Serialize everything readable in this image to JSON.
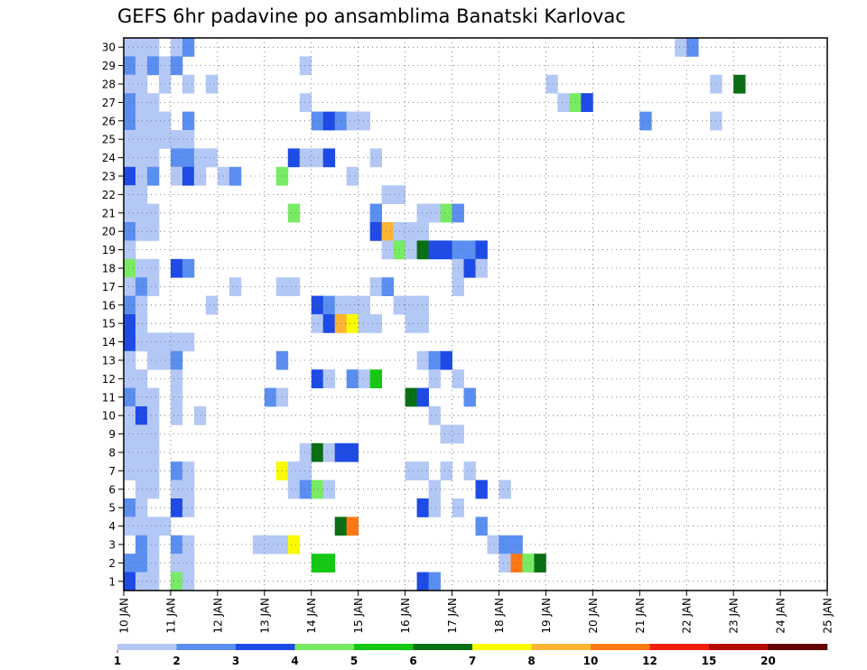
{
  "chart_data": {
    "type": "heatmap",
    "title": "GEFS 6hr padavine po ansamblima Banatski Karlovac",
    "x_start": "10 JAN",
    "x_end": "25 JAN",
    "x_tick_labels": [
      "10 JAN",
      "11 JAN",
      "12 JAN",
      "13 JAN",
      "14 JAN",
      "15 JAN",
      "16 JAN",
      "17 JAN",
      "18 JAN",
      "19 JAN",
      "20 JAN",
      "21 JAN",
      "22 JAN",
      "23 JAN",
      "24 JAN",
      "25 JAN"
    ],
    "y_tick_labels": [
      "1",
      "2",
      "3",
      "4",
      "5",
      "6",
      "7",
      "8",
      "9",
      "10",
      "11",
      "12",
      "13",
      "14",
      "15",
      "16",
      "17",
      "18",
      "19",
      "20",
      "21",
      "22",
      "23",
      "24",
      "25",
      "26",
      "27",
      "28",
      "29",
      "30"
    ],
    "ylim": [
      0.5,
      30.5
    ],
    "grid": true,
    "legend": {
      "placement": "bottom",
      "labels": [
        "1",
        "2",
        "3",
        "4",
        "5",
        "6",
        "7",
        "8",
        "10",
        "12",
        "15",
        "20"
      ],
      "colors": [
        "#b4c8f5",
        "#5a8ef0",
        "#1e4be6",
        "#78eb64",
        "#14c814",
        "#0a6e14",
        "#fafa00",
        "#ffb432",
        "#ff7814",
        "#f01e0a",
        "#b40a00",
        "#640000"
      ]
    },
    "cells": [
      [
        1,
        30,
        1
      ],
      [
        2,
        30,
        1
      ],
      [
        3,
        30,
        1
      ],
      [
        5,
        30,
        1
      ],
      [
        6,
        30,
        2
      ],
      [
        48,
        30,
        1
      ],
      [
        49,
        30,
        2
      ],
      [
        1,
        29,
        2
      ],
      [
        2,
        29,
        1
      ],
      [
        3,
        29,
        2
      ],
      [
        4,
        29,
        1
      ],
      [
        5,
        29,
        2
      ],
      [
        16,
        29,
        1
      ],
      [
        1,
        28,
        1
      ],
      [
        2,
        28,
        1
      ],
      [
        4,
        28,
        1
      ],
      [
        6,
        28,
        1
      ],
      [
        8,
        28,
        1
      ],
      [
        37,
        28,
        1
      ],
      [
        51,
        28,
        1
      ],
      [
        53,
        28,
        6
      ],
      [
        1,
        27,
        2
      ],
      [
        2,
        27,
        1
      ],
      [
        3,
        27,
        1
      ],
      [
        16,
        27,
        1
      ],
      [
        38,
        27,
        1
      ],
      [
        39,
        27,
        4
      ],
      [
        40,
        27,
        3
      ],
      [
        1,
        26,
        2
      ],
      [
        2,
        26,
        1
      ],
      [
        3,
        26,
        1
      ],
      [
        4,
        26,
        1
      ],
      [
        6,
        26,
        2
      ],
      [
        17,
        26,
        2
      ],
      [
        18,
        26,
        3
      ],
      [
        19,
        26,
        2
      ],
      [
        20,
        26,
        1
      ],
      [
        21,
        26,
        1
      ],
      [
        45,
        26,
        2
      ],
      [
        51,
        26,
        1
      ],
      [
        1,
        25,
        1
      ],
      [
        2,
        25,
        1
      ],
      [
        3,
        25,
        1
      ],
      [
        4,
        25,
        1
      ],
      [
        5,
        25,
        1
      ],
      [
        6,
        25,
        1
      ],
      [
        1,
        24,
        1
      ],
      [
        2,
        24,
        1
      ],
      [
        3,
        24,
        1
      ],
      [
        5,
        24,
        2
      ],
      [
        6,
        24,
        2
      ],
      [
        7,
        24,
        1
      ],
      [
        8,
        24,
        1
      ],
      [
        15,
        24,
        3
      ],
      [
        16,
        24,
        1
      ],
      [
        17,
        24,
        1
      ],
      [
        18,
        24,
        3
      ],
      [
        22,
        24,
        1
      ],
      [
        1,
        23,
        3
      ],
      [
        2,
        23,
        1
      ],
      [
        3,
        23,
        2
      ],
      [
        5,
        23,
        1
      ],
      [
        6,
        23,
        3
      ],
      [
        7,
        23,
        1
      ],
      [
        9,
        23,
        1
      ],
      [
        10,
        23,
        2
      ],
      [
        14,
        23,
        4
      ],
      [
        20,
        23,
        1
      ],
      [
        1,
        22,
        1
      ],
      [
        2,
        22,
        1
      ],
      [
        23,
        22,
        1
      ],
      [
        24,
        22,
        1
      ],
      [
        1,
        21,
        1
      ],
      [
        2,
        21,
        1
      ],
      [
        3,
        21,
        1
      ],
      [
        15,
        21,
        4
      ],
      [
        22,
        21,
        2
      ],
      [
        26,
        21,
        1
      ],
      [
        27,
        21,
        1
      ],
      [
        28,
        21,
        4
      ],
      [
        29,
        21,
        2
      ],
      [
        1,
        20,
        2
      ],
      [
        2,
        20,
        1
      ],
      [
        3,
        20,
        1
      ],
      [
        22,
        20,
        3
      ],
      [
        23,
        20,
        8
      ],
      [
        24,
        20,
        1
      ],
      [
        25,
        20,
        1
      ],
      [
        26,
        20,
        1
      ],
      [
        1,
        19,
        1
      ],
      [
        23,
        19,
        1
      ],
      [
        24,
        19,
        4
      ],
      [
        25,
        19,
        1
      ],
      [
        26,
        19,
        6
      ],
      [
        27,
        19,
        3
      ],
      [
        28,
        19,
        3
      ],
      [
        29,
        19,
        2
      ],
      [
        30,
        19,
        2
      ],
      [
        31,
        19,
        3
      ],
      [
        1,
        18,
        4
      ],
      [
        2,
        18,
        1
      ],
      [
        3,
        18,
        1
      ],
      [
        5,
        18,
        3
      ],
      [
        6,
        18,
        2
      ],
      [
        29,
        18,
        1
      ],
      [
        30,
        18,
        3
      ],
      [
        31,
        18,
        1
      ],
      [
        1,
        17,
        1
      ],
      [
        2,
        17,
        2
      ],
      [
        3,
        17,
        1
      ],
      [
        10,
        17,
        1
      ],
      [
        14,
        17,
        1
      ],
      [
        15,
        17,
        1
      ],
      [
        22,
        17,
        1
      ],
      [
        23,
        17,
        2
      ],
      [
        29,
        17,
        1
      ],
      [
        1,
        16,
        2
      ],
      [
        2,
        16,
        1
      ],
      [
        8,
        16,
        1
      ],
      [
        17,
        16,
        3
      ],
      [
        18,
        16,
        2
      ],
      [
        19,
        16,
        1
      ],
      [
        20,
        16,
        1
      ],
      [
        21,
        16,
        1
      ],
      [
        24,
        16,
        1
      ],
      [
        25,
        16,
        1
      ],
      [
        26,
        16,
        1
      ],
      [
        1,
        15,
        3
      ],
      [
        2,
        15,
        1
      ],
      [
        17,
        15,
        1
      ],
      [
        18,
        15,
        3
      ],
      [
        19,
        15,
        8
      ],
      [
        20,
        15,
        7
      ],
      [
        21,
        15,
        1
      ],
      [
        22,
        15,
        1
      ],
      [
        25,
        15,
        1
      ],
      [
        26,
        15,
        1
      ],
      [
        1,
        14,
        3
      ],
      [
        2,
        14,
        1
      ],
      [
        3,
        14,
        1
      ],
      [
        4,
        14,
        1
      ],
      [
        5,
        14,
        1
      ],
      [
        6,
        14,
        1
      ],
      [
        1,
        13,
        1
      ],
      [
        3,
        13,
        1
      ],
      [
        4,
        13,
        1
      ],
      [
        5,
        13,
        2
      ],
      [
        14,
        13,
        2
      ],
      [
        26,
        13,
        1
      ],
      [
        27,
        13,
        2
      ],
      [
        28,
        13,
        3
      ],
      [
        1,
        12,
        1
      ],
      [
        2,
        12,
        1
      ],
      [
        5,
        12,
        1
      ],
      [
        17,
        12,
        3
      ],
      [
        18,
        12,
        1
      ],
      [
        20,
        12,
        2
      ],
      [
        21,
        12,
        1
      ],
      [
        22,
        12,
        5
      ],
      [
        27,
        12,
        1
      ],
      [
        29,
        12,
        1
      ],
      [
        1,
        11,
        2
      ],
      [
        2,
        11,
        1
      ],
      [
        3,
        11,
        1
      ],
      [
        5,
        11,
        1
      ],
      [
        13,
        11,
        2
      ],
      [
        14,
        11,
        1
      ],
      [
        25,
        11,
        6
      ],
      [
        26,
        11,
        3
      ],
      [
        30,
        11,
        2
      ],
      [
        1,
        10,
        1
      ],
      [
        2,
        10,
        3
      ],
      [
        3,
        10,
        1
      ],
      [
        5,
        10,
        1
      ],
      [
        7,
        10,
        1
      ],
      [
        27,
        10,
        1
      ],
      [
        1,
        9,
        1
      ],
      [
        2,
        9,
        1
      ],
      [
        3,
        9,
        1
      ],
      [
        28,
        9,
        1
      ],
      [
        29,
        9,
        1
      ],
      [
        1,
        8,
        1
      ],
      [
        2,
        8,
        1
      ],
      [
        3,
        8,
        1
      ],
      [
        16,
        8,
        1
      ],
      [
        17,
        8,
        6
      ],
      [
        18,
        8,
        1
      ],
      [
        19,
        8,
        3
      ],
      [
        20,
        8,
        3
      ],
      [
        1,
        7,
        1
      ],
      [
        2,
        7,
        1
      ],
      [
        3,
        7,
        1
      ],
      [
        5,
        7,
        2
      ],
      [
        6,
        7,
        1
      ],
      [
        14,
        7,
        7
      ],
      [
        15,
        7,
        1
      ],
      [
        16,
        7,
        1
      ],
      [
        25,
        7,
        1
      ],
      [
        26,
        7,
        1
      ],
      [
        28,
        7,
        1
      ],
      [
        30,
        7,
        1
      ],
      [
        2,
        6,
        1
      ],
      [
        3,
        6,
        1
      ],
      [
        5,
        6,
        1
      ],
      [
        6,
        6,
        1
      ],
      [
        15,
        6,
        1
      ],
      [
        16,
        6,
        2
      ],
      [
        17,
        6,
        4
      ],
      [
        18,
        6,
        1
      ],
      [
        27,
        6,
        1
      ],
      [
        31,
        6,
        3
      ],
      [
        33,
        6,
        1
      ],
      [
        1,
        5,
        2
      ],
      [
        2,
        5,
        1
      ],
      [
        5,
        5,
        3
      ],
      [
        6,
        5,
        1
      ],
      [
        26,
        5,
        3
      ],
      [
        27,
        5,
        1
      ],
      [
        29,
        5,
        1
      ],
      [
        1,
        4,
        1
      ],
      [
        2,
        4,
        1
      ],
      [
        3,
        4,
        1
      ],
      [
        4,
        4,
        1
      ],
      [
        19,
        4,
        6
      ],
      [
        20,
        4,
        9
      ],
      [
        31,
        4,
        2
      ],
      [
        2,
        3,
        2
      ],
      [
        3,
        3,
        1
      ],
      [
        5,
        3,
        2
      ],
      [
        6,
        3,
        1
      ],
      [
        12,
        3,
        1
      ],
      [
        13,
        3,
        1
      ],
      [
        14,
        3,
        1
      ],
      [
        15,
        3,
        7
      ],
      [
        32,
        3,
        1
      ],
      [
        33,
        3,
        2
      ],
      [
        34,
        3,
        2
      ],
      [
        1,
        2,
        2
      ],
      [
        2,
        2,
        2
      ],
      [
        3,
        2,
        1
      ],
      [
        5,
        2,
        1
      ],
      [
        6,
        2,
        1
      ],
      [
        17,
        2,
        5
      ],
      [
        18,
        2,
        5
      ],
      [
        33,
        2,
        1
      ],
      [
        34,
        2,
        9
      ],
      [
        35,
        2,
        4
      ],
      [
        36,
        2,
        6
      ],
      [
        1,
        1,
        3
      ],
      [
        2,
        1,
        1
      ],
      [
        3,
        1,
        1
      ],
      [
        5,
        1,
        4
      ],
      [
        6,
        1,
        1
      ],
      [
        26,
        1,
        3
      ],
      [
        27,
        1,
        2
      ]
    ]
  }
}
